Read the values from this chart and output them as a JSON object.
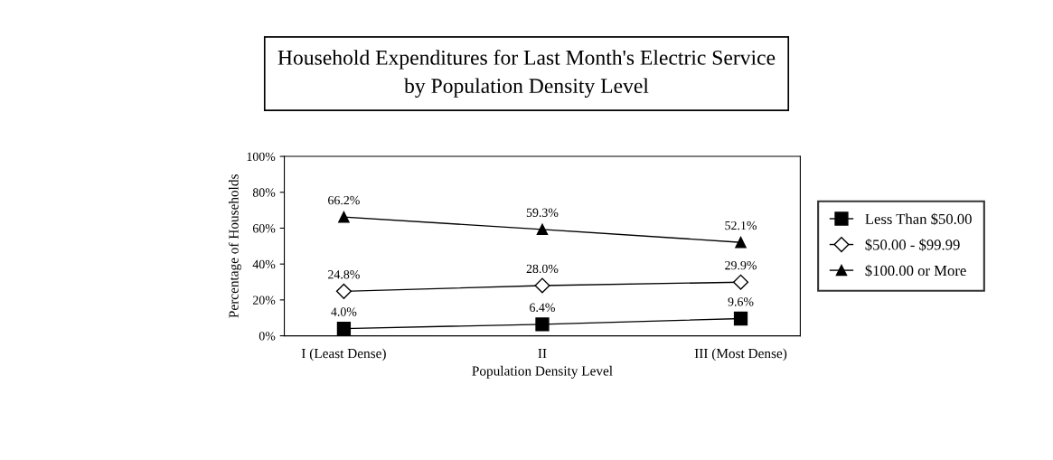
{
  "chart_data": {
    "type": "line",
    "title": "Household Expenditures for Last Month's Electric Service\nby Population Density Level",
    "xlabel": "Population Density Level",
    "ylabel": "Percentage of Households",
    "categories": [
      "I (Least Dense)",
      "II",
      "III (Most Dense)"
    ],
    "series": [
      {
        "name": "Less Than $50.00",
        "color": "#000000",
        "marker": "square",
        "values": [
          4.0,
          6.4,
          9.6
        ],
        "value_labels": [
          "4.0%",
          "6.4%",
          "9.6%"
        ]
      },
      {
        "name": "$50.00 - $99.99",
        "color": "#000000",
        "marker": "diamond",
        "values": [
          24.8,
          28.0,
          29.9
        ],
        "value_labels": [
          "24.8%",
          "28.0%",
          "29.9%"
        ]
      },
      {
        "name": "$100.00 or More",
        "color": "#000000",
        "marker": "triangle",
        "values": [
          66.2,
          59.3,
          52.1
        ],
        "value_labels": [
          "66.2%",
          "59.3%",
          "52.1%"
        ]
      }
    ],
    "ylim": [
      0,
      100
    ],
    "yticks": [
      {
        "value": 0,
        "label": "0%"
      },
      {
        "value": 20,
        "label": "20%"
      },
      {
        "value": 40,
        "label": "40%"
      },
      {
        "value": 60,
        "label": "60%"
      },
      {
        "value": 80,
        "label": "80%"
      },
      {
        "value": 100,
        "label": "100%"
      }
    ],
    "grid": false,
    "legend": "right",
    "line_style": "solid"
  }
}
